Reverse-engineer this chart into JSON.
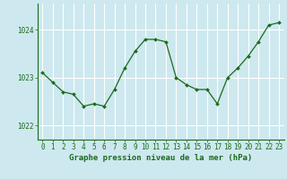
{
  "x": [
    0,
    1,
    2,
    3,
    4,
    5,
    6,
    7,
    8,
    9,
    10,
    11,
    12,
    13,
    14,
    15,
    16,
    17,
    18,
    19,
    20,
    21,
    22,
    23
  ],
  "y": [
    1023.1,
    1022.9,
    1022.7,
    1022.65,
    1022.4,
    1022.45,
    1022.4,
    1022.75,
    1023.2,
    1023.55,
    1023.8,
    1023.8,
    1023.75,
    1023.0,
    1022.85,
    1022.75,
    1022.75,
    1022.45,
    1023.0,
    1023.2,
    1023.45,
    1023.75,
    1024.1,
    1024.15
  ],
  "line_color": "#1a6b1a",
  "marker": "D",
  "marker_size": 2.0,
  "bg_color": "#cde8ef",
  "grid_color": "#ffffff",
  "axis_color": "#1a6b1a",
  "xlabel": "Graphe pression niveau de la mer (hPa)",
  "xlabel_fontsize": 6.5,
  "tick_fontsize": 5.5,
  "yticks": [
    1022,
    1023,
    1024
  ],
  "ylim": [
    1021.7,
    1024.55
  ],
  "xlim": [
    -0.5,
    23.5
  ]
}
